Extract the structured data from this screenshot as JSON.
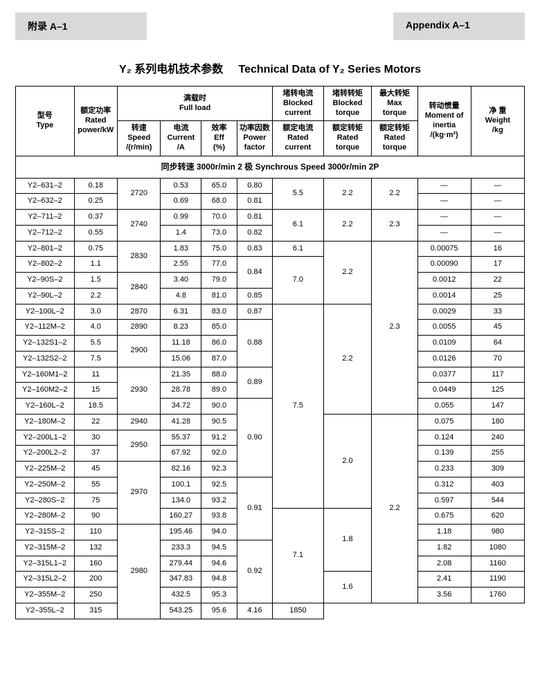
{
  "header_left": "附录 A–1",
  "header_right": "Appendix A–1",
  "title_cn": "Y₂ 系列电机技术参数",
  "title_en": "Technical Data of Y₂ Series Motors",
  "cols": {
    "type": {
      "l1": "型号",
      "l2": "Type"
    },
    "power": {
      "l1": "额定功率",
      "l2": "Rated",
      "l3": "power/kW"
    },
    "fullload": {
      "l1": "满载时",
      "l2": "Full load"
    },
    "speed": {
      "l1": "转速",
      "l2": "Speed",
      "l3": "/(r/min)"
    },
    "current": {
      "l1": "电流",
      "l2": "Current",
      "l3": "/A"
    },
    "eff": {
      "l1": "效率",
      "l2": "Eff",
      "l3": "(%)"
    },
    "pf": {
      "l1": "功率因数",
      "l2": "Power",
      "l3": "factor"
    },
    "bc": {
      "t1": "堵转电流",
      "t2": "Blocked",
      "t3": "current",
      "b1": "额定电流",
      "b2": "Rated",
      "b3": "current"
    },
    "bt": {
      "t1": "堵转转矩",
      "t2": "Blocked",
      "t3": "torque",
      "b1": "额定转矩",
      "b2": "Rated",
      "b3": "torque"
    },
    "mt": {
      "t1": "最大转矩",
      "t2": "Max",
      "t3": "torque",
      "b1": "额定转矩",
      "b2": "Rated",
      "b3": "torque"
    },
    "moi": {
      "l1": "转动惯量",
      "l2": "Moment of",
      "l3": "inertia",
      "l4": "/(kg·m²)"
    },
    "wt": {
      "l1": "净 重",
      "l2": "Weight",
      "l3": "/kg"
    }
  },
  "section": "同步转速 3000r/min 2 极    Synchrous Speed 3000r/min 2P",
  "rows": [
    {
      "type": "Y2–631–2",
      "power": "0.18",
      "speed": "2720",
      "speed_rs": 2,
      "curr": "0.53",
      "eff": "65.0",
      "pf": "0.80",
      "bc": "5.5",
      "bc_rs": 2,
      "bt": "2.2",
      "bt_rs": 2,
      "mt": "2.2",
      "mt_rs": 2,
      "moi": "—",
      "wt": "—"
    },
    {
      "type": "Y2–632–2",
      "power": "0.25",
      "curr": "0.69",
      "eff": "68.0",
      "pf": "0.81",
      "moi": "—",
      "wt": "—"
    },
    {
      "type": "Y2–711–2",
      "power": "0.37",
      "speed": "2740",
      "speed_rs": 2,
      "curr": "0.99",
      "eff": "70.0",
      "pf": "0.81",
      "bc": "6.1",
      "bc_rs": 2,
      "bt": "2.2",
      "bt_rs": 2,
      "mt": "2.3",
      "mt_rs": 2,
      "moi": "—",
      "wt": "—"
    },
    {
      "type": "Y2–712–2",
      "power": "0.55",
      "curr": "1.4",
      "eff": "73.0",
      "pf": "0.82",
      "moi": "—",
      "wt": "—"
    },
    {
      "type": "Y2–801–2",
      "power": "0.75",
      "speed": "2830",
      "speed_rs": 2,
      "curr": "1.83",
      "eff": "75.0",
      "pf": "0.83",
      "bc": "6.1",
      "bc_rs": 1,
      "bt": "2.2",
      "bt_rs": 4,
      "mt": "2.3",
      "mt_rs": 11,
      "moi": "0.00075",
      "wt": "16"
    },
    {
      "type": "Y2–802–2",
      "power": "1.1",
      "curr": "2.55",
      "eff": "77.0",
      "pf": "0.84",
      "pf_rs": 2,
      "bc": "7.0",
      "bc_rs": 3,
      "moi": "0.00090",
      "wt": "17"
    },
    {
      "type": "Y2–90S–2",
      "power": "1.5",
      "speed": "2840",
      "speed_rs": 2,
      "curr": "3.40",
      "eff": "79.0",
      "moi": "0.0012",
      "wt": "22"
    },
    {
      "type": "Y2–90L–2",
      "power": "2.2",
      "curr": "4.8",
      "eff": "81.0",
      "pf": "0.85",
      "moi": "0.0014",
      "wt": "25"
    },
    {
      "type": "Y2–100L–2",
      "power": "3.0",
      "speed": "2870",
      "curr": "6.31",
      "eff": "83.0",
      "pf": "0.87",
      "bc": "7.5",
      "bc_rs": 13,
      "bt": "2.2",
      "bt_rs": 7,
      "moi": "0.0029",
      "wt": "33"
    },
    {
      "type": "Y2–112M–2",
      "power": "4.0",
      "speed": "2890",
      "curr": "8.23",
      "eff": "85.0",
      "pf": "0.88",
      "pf_rs": 3,
      "moi": "0.0055",
      "wt": "45"
    },
    {
      "type": "Y2–132S1–2",
      "power": "5.5",
      "speed": "2900",
      "speed_rs": 2,
      "curr": "11.18",
      "eff": "86.0",
      "moi": "0.0109",
      "wt": "64"
    },
    {
      "type": "Y2–132S2–2",
      "power": "7.5",
      "curr": "15.06",
      "eff": "87.0",
      "moi": "0.0126",
      "wt": "70"
    },
    {
      "type": "Y2–160M1–2",
      "power": "11",
      "speed": "2930",
      "speed_rs": 3,
      "curr": "21.35",
      "eff": "88.0",
      "pf": "0.89",
      "pf_rs": 2,
      "moi": "0.0377",
      "wt": "117"
    },
    {
      "type": "Y2–160M2–2",
      "power": "15",
      "curr": "28.78",
      "eff": "89.0",
      "moi": "0.0449",
      "wt": "125"
    },
    {
      "type": "Y2–160L–2",
      "power": "18.5",
      "curr": "34.72",
      "eff": "90.0",
      "pf": "0.90",
      "pf_rs": 5,
      "moi": "0.055",
      "wt": "147"
    },
    {
      "type": "Y2–180M–2",
      "power": "22",
      "speed": "2940",
      "curr": "41.28",
      "eff": "90.5",
      "bt": "2.0",
      "bt_rs": 6,
      "mt": "2.2",
      "mt_rs": 12,
      "moi": "0.075",
      "wt": "180"
    },
    {
      "type": "Y2–200L1–2",
      "power": "30",
      "speed": "2950",
      "speed_rs": 2,
      "curr": "55.37",
      "eff": "91.2",
      "moi": "0.124",
      "wt": "240"
    },
    {
      "type": "Y2–200L2–2",
      "power": "37",
      "curr": "67.92",
      "eff": "92.0",
      "moi": "0.139",
      "wt": "255"
    },
    {
      "type": "Y2–225M–2",
      "power": "45",
      "speed": "2970",
      "speed_rs": 4,
      "curr": "82.16",
      "eff": "92.3",
      "moi": "0.233",
      "wt": "309"
    },
    {
      "type": "Y2–250M–2",
      "power": "55",
      "curr": "100.1",
      "eff": "92.5",
      "pf": "0.91",
      "pf_rs": 4,
      "moi": "0.312",
      "wt": "403"
    },
    {
      "type": "Y2–280S–2",
      "power": "75",
      "curr": "134.0",
      "eff": "93.2",
      "moi": "0.597",
      "wt": "544"
    },
    {
      "type": "Y2–280M–2",
      "power": "90",
      "curr": "160.27",
      "eff": "93.8",
      "bc": "7.1",
      "bc_rs": 6,
      "bt": "1.8",
      "bt_rs": 4,
      "moi": "0.675",
      "wt": "620"
    },
    {
      "type": "Y2–315S–2",
      "power": "110",
      "speed": "2980",
      "speed_rs": 6,
      "curr": "195.46",
      "eff": "94.0",
      "moi": "1.18",
      "wt": "980"
    },
    {
      "type": "Y2–315M–2",
      "power": "132",
      "curr": "233.3",
      "eff": "94.5",
      "pf": "0.92",
      "pf_rs": 4,
      "moi": "1.82",
      "wt": "1080"
    },
    {
      "type": "Y2–315L1–2",
      "power": "160",
      "curr": "279.44",
      "eff": "94.6",
      "moi": "2.08",
      "wt": "1160"
    },
    {
      "type": "Y2–315L2–2",
      "power": "200",
      "curr": "347.83",
      "eff": "94.8",
      "bt": "1.6",
      "bt_rs": 2,
      "moi": "2.41",
      "wt": "1190"
    },
    {
      "type": "Y2–355M–2",
      "power": "250",
      "curr": "432.5",
      "eff": "95.3",
      "moi": "3.56",
      "wt": "1760"
    },
    {
      "type": "Y2–355L–2",
      "power": "315",
      "curr": "543.25",
      "eff": "95.6",
      "moi": "4.16",
      "wt": "1850"
    }
  ]
}
